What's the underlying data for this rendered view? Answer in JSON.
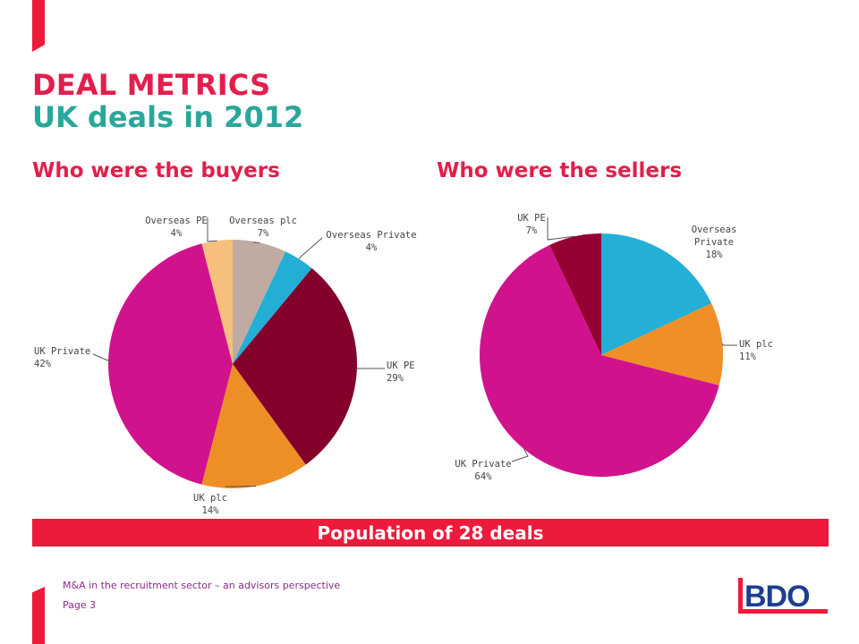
{
  "slide": {
    "title": "DEAL METRICS",
    "subtitle": "UK deals in 2012",
    "banner": "Population of 28 deals",
    "footer_text": "M&A in the recruitment  sector  – an advisors  perspective",
    "page_label": "Page 3",
    "logo_text": "BDO"
  },
  "colors": {
    "accent_red": "#ed1a3b",
    "title_red": "#e41e4c",
    "title_teal": "#2aa79b",
    "footer_purple": "#8a2b86",
    "logo_blue": "#1d3f8f"
  },
  "chart_data": [
    {
      "type": "pie",
      "title": "Who were the buyers",
      "slices": [
        {
          "label": "Overseas plc",
          "value": 7,
          "value_label": "7%",
          "color": "#c0aba2"
        },
        {
          "label": "Overseas Private",
          "value": 4,
          "value_label": "4%",
          "color": "#23aed6"
        },
        {
          "label": "UK PE",
          "value": 29,
          "value_label": "29%",
          "color": "#83002b"
        },
        {
          "label": "UK plc",
          "value": 14,
          "value_label": "14%",
          "color": "#ed8f26"
        },
        {
          "label": "UK Private",
          "value": 42,
          "value_label": "42%",
          "color": "#d0128d"
        },
        {
          "label": "Overseas PE",
          "value": 4,
          "value_label": "4%",
          "color": "#f6bf7c"
        }
      ]
    },
    {
      "type": "pie",
      "title": "Who were the sellers",
      "slices": [
        {
          "label": "Overseas Private",
          "value": 18,
          "value_label": "18%",
          "color": "#24afd6"
        },
        {
          "label": "UK plc",
          "value": 11,
          "value_label": "11%",
          "color": "#ef8f26"
        },
        {
          "label": "UK Private",
          "value": 64,
          "value_label": "64%",
          "color": "#d0128d"
        },
        {
          "label": "UK PE",
          "value": 7,
          "value_label": "7%",
          "color": "#940033"
        }
      ]
    }
  ]
}
